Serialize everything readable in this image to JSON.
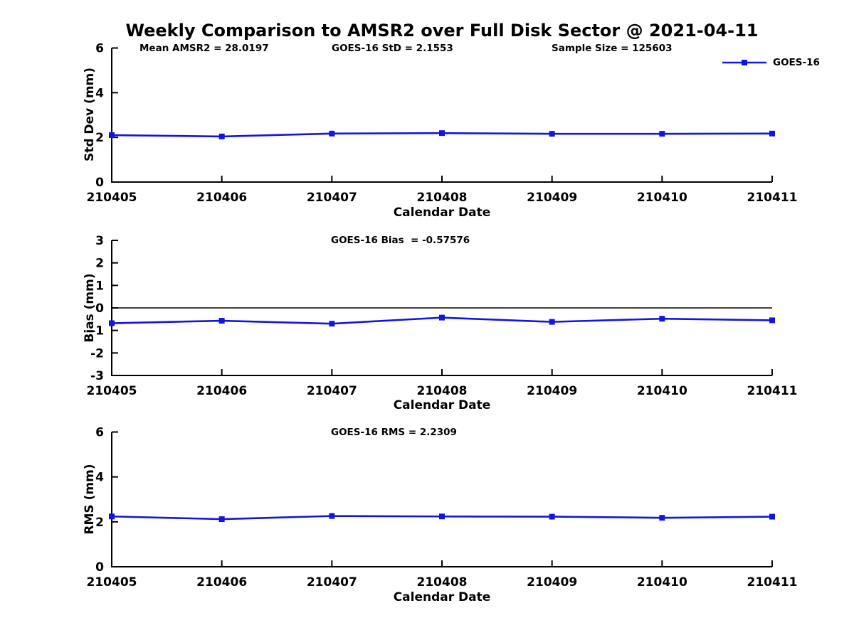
{
  "title": "Weekly Comparison to AMSR2 over Full Disk Sector @ 2021-04-11",
  "legend": {
    "label": "GOES-16",
    "position": "top-right"
  },
  "x_axis": {
    "label": "Calendar Date",
    "categories": [
      "210405",
      "210406",
      "210407",
      "210408",
      "210409",
      "210410",
      "210411"
    ]
  },
  "stats": {
    "mean_amsr2": "Mean AMSR2 = 28.0197",
    "goes16_std": "GOES-16 StD = 2.1553",
    "sample_size": "Sample Size = 125603",
    "goes16_bias": "GOES-16 Bias  = -0.57576",
    "goes16_rms": "GOES-16 RMS = 2.2309"
  },
  "colors": {
    "line": "#1414e0",
    "axis": "#000000",
    "background": "#ffffff"
  },
  "chart_data": [
    {
      "type": "line",
      "title": "",
      "ylabel": "Std Dev (mm)",
      "xlabel": "Calendar Date",
      "categories": [
        "210405",
        "210406",
        "210407",
        "210408",
        "210409",
        "210410",
        "210411"
      ],
      "series": [
        {
          "name": "GOES-16",
          "values": [
            2.1,
            2.04,
            2.17,
            2.19,
            2.16,
            2.16,
            2.17
          ]
        }
      ],
      "ylim": [
        0,
        6
      ],
      "yticks": [
        0,
        2,
        4,
        6
      ],
      "grid": false,
      "zero_line": false,
      "legend": "GOES-16",
      "annotations": [
        "Mean AMSR2 = 28.0197",
        "GOES-16 StD = 2.1553",
        "Sample Size = 125603"
      ]
    },
    {
      "type": "line",
      "title": "",
      "ylabel": "Bias (mm)",
      "xlabel": "Calendar Date",
      "categories": [
        "210405",
        "210406",
        "210407",
        "210408",
        "210409",
        "210410",
        "210411"
      ],
      "series": [
        {
          "name": "GOES-16",
          "values": [
            -0.68,
            -0.57,
            -0.7,
            -0.43,
            -0.62,
            -0.48,
            -0.55
          ]
        }
      ],
      "ylim": [
        -3,
        3
      ],
      "yticks": [
        -3,
        -2,
        -1,
        0,
        1,
        2,
        3
      ],
      "grid": false,
      "zero_line": true,
      "annotations": [
        "GOES-16 Bias  = -0.57576"
      ]
    },
    {
      "type": "line",
      "title": "",
      "ylabel": "RMS (mm)",
      "xlabel": "Calendar Date",
      "categories": [
        "210405",
        "210406",
        "210407",
        "210408",
        "210409",
        "210410",
        "210411"
      ],
      "series": [
        {
          "name": "GOES-16",
          "values": [
            2.24,
            2.12,
            2.26,
            2.24,
            2.23,
            2.18,
            2.23
          ]
        }
      ],
      "ylim": [
        0,
        6
      ],
      "yticks": [
        0,
        2,
        4,
        6
      ],
      "grid": false,
      "zero_line": false,
      "annotations": [
        "GOES-16 RMS = 2.2309"
      ]
    }
  ]
}
